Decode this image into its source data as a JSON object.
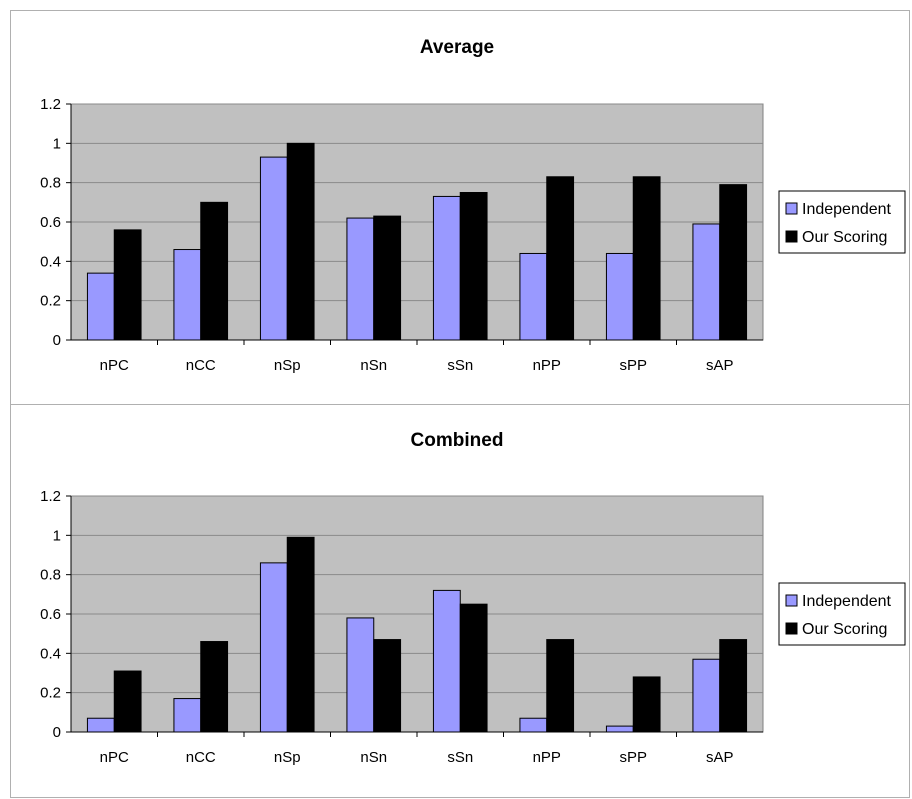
{
  "chart_data": [
    {
      "type": "bar",
      "title": "Average",
      "xlabel": "",
      "ylabel": "",
      "categories": [
        "nPC",
        "nCC",
        "nSp",
        "nSn",
        "sSn",
        "nPP",
        "sPP",
        "sAP"
      ],
      "series": [
        {
          "name": "Independent",
          "values": [
            0.34,
            0.46,
            0.93,
            0.62,
            0.73,
            0.44,
            0.44,
            0.59
          ]
        },
        {
          "name": "Our Scoring",
          "values": [
            0.56,
            0.7,
            1.0,
            0.63,
            0.75,
            0.83,
            0.83,
            0.79
          ]
        }
      ],
      "ylim": [
        0,
        1.2
      ],
      "yticks": [
        "0",
        "0.2",
        "0.4",
        "0.6",
        "0.8",
        "1",
        "1.2"
      ],
      "grid": true,
      "legend": "right",
      "colors": {
        "Independent": "#9999ff",
        "Our Scoring": "#000000",
        "plot_bg": "#c0c0c0",
        "gridline": "#8a8a8a"
      }
    },
    {
      "type": "bar",
      "title": "Combined",
      "xlabel": "",
      "ylabel": "",
      "categories": [
        "nPC",
        "nCC",
        "nSp",
        "nSn",
        "sSn",
        "nPP",
        "sPP",
        "sAP"
      ],
      "series": [
        {
          "name": "Independent",
          "values": [
            0.07,
            0.17,
            0.86,
            0.58,
            0.72,
            0.07,
            0.03,
            0.37
          ]
        },
        {
          "name": "Our Scoring",
          "values": [
            0.31,
            0.46,
            0.99,
            0.47,
            0.65,
            0.47,
            0.28,
            0.47
          ]
        }
      ],
      "ylim": [
        0,
        1.2
      ],
      "yticks": [
        "0",
        "0.2",
        "0.4",
        "0.6",
        "0.8",
        "1",
        "1.2"
      ],
      "grid": true,
      "legend": "right",
      "colors": {
        "Independent": "#9999ff",
        "Our Scoring": "#000000",
        "plot_bg": "#c0c0c0",
        "gridline": "#8a8a8a"
      }
    }
  ]
}
